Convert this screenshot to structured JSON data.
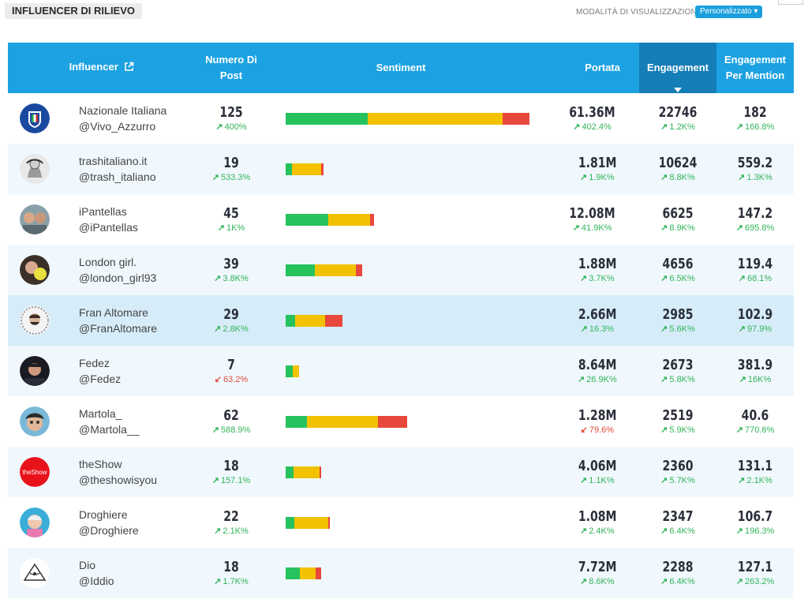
{
  "header": {
    "title": "INFLUENCER DI RILIEVO",
    "mode_label": "MODALITÀ DI VISUALIZZAZIONE",
    "mode_value": "Personalizzato ▾"
  },
  "table": {
    "columns": {
      "influencer": "Influencer",
      "posts_line1": "Numero Di",
      "posts_line2": "Post",
      "sentiment": "Sentiment",
      "portata": "Portata",
      "engagement": "Engagement",
      "epm_line1": "Engagement",
      "epm_line2": "Per Mention"
    },
    "rows": [
      {
        "name": "Nazionale Italiana",
        "handle": "@Vivo_Azzurro",
        "posts": "125",
        "posts_delta": "400%",
        "posts_dir": "up",
        "sentiment": {
          "green": 104,
          "yellow": 171,
          "red": 34
        },
        "portata": "61.36M",
        "portata_delta": "402.4%",
        "portata_dir": "up",
        "engagement": "22746",
        "eng_delta": "1.2K%",
        "eng_dir": "up",
        "epm": "182",
        "epm_delta": "166.8%",
        "epm_dir": "up"
      },
      {
        "name": "trashitaliano.it",
        "handle": "@trash_italiano",
        "posts": "19",
        "posts_delta": "533.3%",
        "posts_dir": "up",
        "sentiment": {
          "green": 8,
          "yellow": 37,
          "red": 3
        },
        "portata": "1.81M",
        "portata_delta": "1.9K%",
        "portata_dir": "up",
        "engagement": "10624",
        "eng_delta": "8.8K%",
        "eng_dir": "up",
        "epm": "559.2",
        "epm_delta": "1.3K%",
        "epm_dir": "up"
      },
      {
        "name": "iPantellas",
        "handle": "@iPantellas",
        "posts": "45",
        "posts_delta": "1K%",
        "posts_dir": "up",
        "sentiment": {
          "green": 54,
          "yellow": 53,
          "red": 5
        },
        "portata": "12.08M",
        "portata_delta": "41.9K%",
        "portata_dir": "up",
        "engagement": "6625",
        "eng_delta": "8.9K%",
        "eng_dir": "up",
        "epm": "147.2",
        "epm_delta": "695.8%",
        "epm_dir": "up"
      },
      {
        "name": "London girl.",
        "handle": "@london_girl93",
        "posts": "39",
        "posts_delta": "3.8K%",
        "posts_dir": "up",
        "sentiment": {
          "green": 37,
          "yellow": 52,
          "red": 8
        },
        "portata": "1.88M",
        "portata_delta": "3.7K%",
        "portata_dir": "up",
        "engagement": "4656",
        "eng_delta": "6.5K%",
        "eng_dir": "up",
        "epm": "119.4",
        "epm_delta": "68.1%",
        "epm_dir": "up"
      },
      {
        "name": "Fran Altomare",
        "handle": "@FranAltomare",
        "posts": "29",
        "posts_delta": "2.8K%",
        "posts_dir": "up",
        "sentiment": {
          "green": 12,
          "yellow": 38,
          "red": 22
        },
        "portata": "2.66M",
        "portata_delta": "16.3%",
        "portata_dir": "up",
        "engagement": "2985",
        "eng_delta": "5.6K%",
        "eng_dir": "up",
        "epm": "102.9",
        "epm_delta": "97.9%",
        "epm_dir": "up"
      },
      {
        "name": "Fedez",
        "handle": "@Fedez",
        "posts": "7",
        "posts_delta": "63.2%",
        "posts_dir": "down",
        "sentiment": {
          "green": 9,
          "yellow": 8,
          "red": 0
        },
        "portata": "8.64M",
        "portata_delta": "26.9K%",
        "portata_dir": "up",
        "engagement": "2673",
        "eng_delta": "5.8K%",
        "eng_dir": "up",
        "epm": "381.9",
        "epm_delta": "16K%",
        "epm_dir": "up"
      },
      {
        "name": "Martola_",
        "handle": "@Martola__",
        "posts": "62",
        "posts_delta": "588.9%",
        "posts_dir": "up",
        "sentiment": {
          "green": 27,
          "yellow": 90,
          "red": 37
        },
        "portata": "1.28M",
        "portata_delta": "79.6%",
        "portata_dir": "down",
        "engagement": "2519",
        "eng_delta": "5.9K%",
        "eng_dir": "up",
        "epm": "40.6",
        "epm_delta": "770.6%",
        "epm_dir": "up"
      },
      {
        "name": "theShow",
        "handle": "@theshowisyou",
        "posts": "18",
        "posts_delta": "157.1%",
        "posts_dir": "up",
        "sentiment": {
          "green": 10,
          "yellow": 33,
          "red": 2
        },
        "portata": "4.06M",
        "portata_delta": "1.1K%",
        "portata_dir": "up",
        "engagement": "2360",
        "eng_delta": "5.7K%",
        "eng_dir": "up",
        "epm": "131.1",
        "epm_delta": "2.1K%",
        "epm_dir": "up"
      },
      {
        "name": "Droghiere",
        "handle": "@Droghiere",
        "posts": "22",
        "posts_delta": "2.1K%",
        "posts_dir": "up",
        "sentiment": {
          "green": 11,
          "yellow": 43,
          "red": 2
        },
        "portata": "1.08M",
        "portata_delta": "2.4K%",
        "portata_dir": "up",
        "engagement": "2347",
        "eng_delta": "6.4K%",
        "eng_dir": "up",
        "epm": "106.7",
        "epm_delta": "196.3%",
        "epm_dir": "up"
      },
      {
        "name": "Dio",
        "handle": "@Iddio",
        "posts": "18",
        "posts_delta": "1.7K%",
        "posts_dir": "up",
        "sentiment": {
          "green": 18,
          "yellow": 20,
          "red": 7
        },
        "portata": "7.72M",
        "portata_delta": "8.6K%",
        "portata_dir": "up",
        "engagement": "2288",
        "eng_delta": "6.4K%",
        "eng_dir": "up",
        "epm": "127.1",
        "epm_delta": "263.2%",
        "epm_dir": "up"
      }
    ]
  },
  "colors": {
    "header_bg": "#1ca2e2",
    "sorted_header_bg": "#157db8",
    "positive": "#32b35a",
    "negative": "#e04b3a",
    "sentiment_positive": "#26c25e",
    "sentiment_neutral": "#f2c200",
    "sentiment_negative": "#e8473c"
  },
  "icons": {
    "external_link": "external-link-icon",
    "trend_up": "arrow-up-right-icon",
    "trend_down": "arrow-down-left-icon",
    "sort": "sort-desc-caret-icon"
  }
}
